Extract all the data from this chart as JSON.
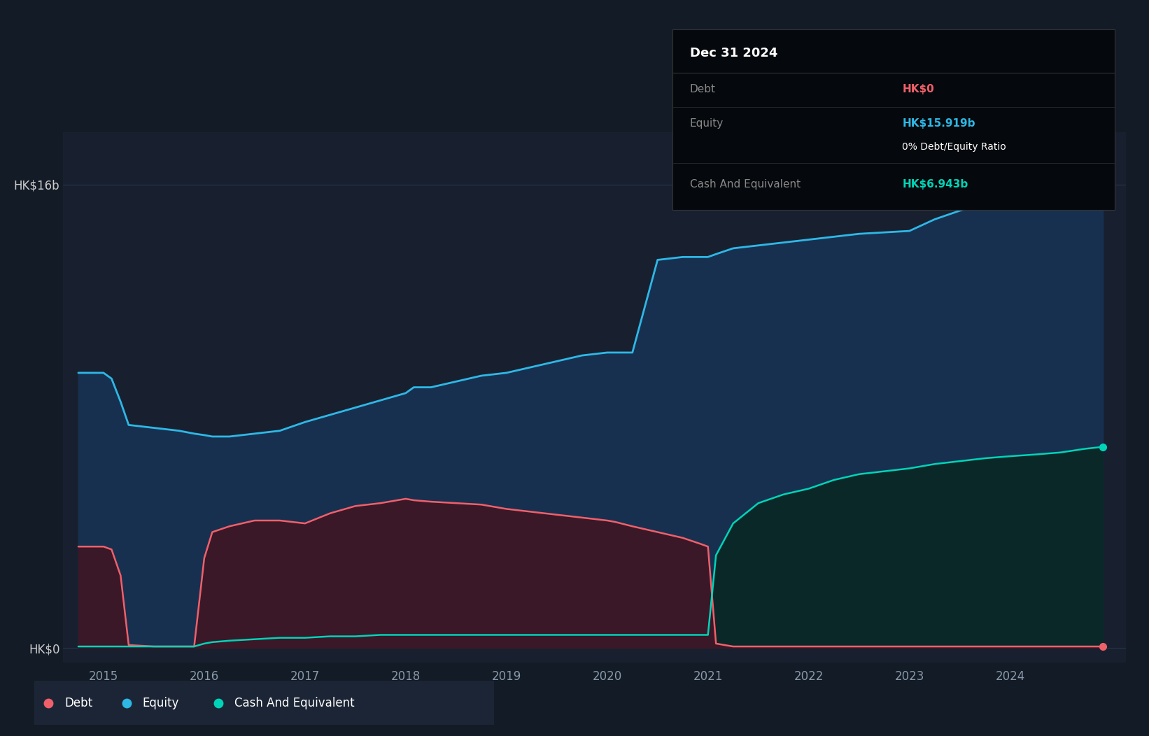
{
  "bg_color": "#131b26",
  "plot_bg_color": "#182030",
  "equity_color": "#2eb8e6",
  "equity_fill": "#183050",
  "debt_color": "#f0606a",
  "debt_fill": "#3a1828",
  "cash_color": "#00d4b8",
  "cash_fill": "#0a2828",
  "grid_color": "#253545",
  "tooltip_bg": "#05080c",
  "tooltip_border": "#333333",
  "tooltip_title": "Dec 31 2024",
  "tooltip_debt_label": "Debt",
  "tooltip_debt_value": "HK$0",
  "tooltip_equity_label": "Equity",
  "tooltip_equity_value": "HK$15.919b",
  "tooltip_ratio": "0% Debt/Equity Ratio",
  "tooltip_cash_label": "Cash And Equivalent",
  "tooltip_cash_value": "HK$6.943b",
  "legend_debt": "Debt",
  "legend_equity": "Equity",
  "legend_cash": "Cash And Equivalent",
  "years": [
    2014.75,
    2015.0,
    2015.08,
    2015.17,
    2015.25,
    2015.5,
    2015.75,
    2015.9,
    2016.0,
    2016.08,
    2016.25,
    2016.5,
    2016.75,
    2017.0,
    2017.25,
    2017.5,
    2017.75,
    2018.0,
    2018.08,
    2018.25,
    2018.5,
    2018.75,
    2019.0,
    2019.25,
    2019.5,
    2019.75,
    2020.0,
    2020.08,
    2020.25,
    2020.5,
    2020.75,
    2020.92,
    2021.0,
    2021.08,
    2021.25,
    2021.5,
    2021.75,
    2022.0,
    2022.25,
    2022.5,
    2022.75,
    2023.0,
    2023.25,
    2023.5,
    2023.75,
    2024.0,
    2024.25,
    2024.5,
    2024.75,
    2024.92
  ],
  "equity": [
    9.5,
    9.5,
    9.3,
    8.5,
    7.7,
    7.6,
    7.5,
    7.4,
    7.35,
    7.3,
    7.3,
    7.4,
    7.5,
    7.8,
    8.05,
    8.3,
    8.55,
    8.8,
    9.0,
    9.0,
    9.2,
    9.4,
    9.5,
    9.7,
    9.9,
    10.1,
    10.2,
    10.2,
    10.2,
    13.4,
    13.5,
    13.5,
    13.5,
    13.6,
    13.8,
    13.9,
    14.0,
    14.1,
    14.2,
    14.3,
    14.35,
    14.4,
    14.8,
    15.1,
    15.35,
    15.55,
    15.65,
    15.75,
    15.87,
    15.919
  ],
  "debt": [
    3.5,
    3.5,
    3.4,
    2.5,
    0.1,
    0.05,
    0.05,
    0.05,
    3.1,
    4.0,
    4.2,
    4.4,
    4.4,
    4.3,
    4.65,
    4.9,
    5.0,
    5.15,
    5.1,
    5.05,
    5.0,
    4.95,
    4.8,
    4.7,
    4.6,
    4.5,
    4.4,
    4.35,
    4.2,
    4.0,
    3.8,
    3.6,
    3.5,
    0.15,
    0.05,
    0.05,
    0.05,
    0.05,
    0.05,
    0.05,
    0.05,
    0.05,
    0.05,
    0.05,
    0.05,
    0.05,
    0.05,
    0.05,
    0.05,
    0.05
  ],
  "cash": [
    0.05,
    0.05,
    0.05,
    0.05,
    0.05,
    0.05,
    0.05,
    0.05,
    0.15,
    0.2,
    0.25,
    0.3,
    0.35,
    0.35,
    0.4,
    0.4,
    0.45,
    0.45,
    0.45,
    0.45,
    0.45,
    0.45,
    0.45,
    0.45,
    0.45,
    0.45,
    0.45,
    0.45,
    0.45,
    0.45,
    0.45,
    0.45,
    0.45,
    3.2,
    4.3,
    5.0,
    5.3,
    5.5,
    5.8,
    6.0,
    6.1,
    6.2,
    6.35,
    6.45,
    6.55,
    6.62,
    6.68,
    6.75,
    6.88,
    6.943
  ],
  "xlim_left": 2014.6,
  "xlim_right": 2025.15,
  "ylim_bottom": -0.5,
  "ylim_top": 17.8,
  "xticks": [
    2015,
    2016,
    2017,
    2018,
    2019,
    2020,
    2021,
    2022,
    2023,
    2024
  ],
  "ytick_top_label": "HK$16b",
  "ytick_top_pos": 16,
  "ytick_bottom_label": "HK$0",
  "ytick_bottom_pos": 0,
  "grid_positions": [
    0,
    4,
    8,
    12,
    16
  ]
}
